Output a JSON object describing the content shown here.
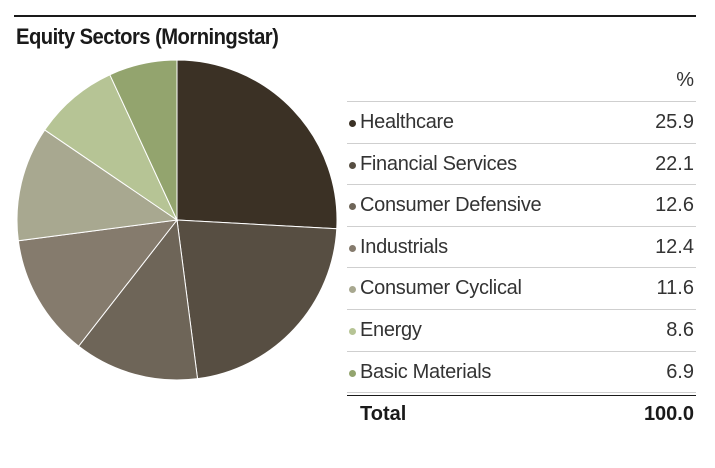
{
  "title": "Equity Sectors (Morningstar)",
  "unit_header": "%",
  "total": {
    "label": "Total",
    "value": "100.0"
  },
  "chart_data": {
    "type": "pie",
    "title": "Equity Sectors (Morningstar)",
    "unit": "%",
    "categories": [
      "Healthcare",
      "Financial Services",
      "Consumer Defensive",
      "Industrials",
      "Consumer Cyclical",
      "Energy",
      "Basic Materials"
    ],
    "values": [
      25.9,
      22.1,
      12.6,
      12.4,
      11.6,
      8.6,
      6.9
    ],
    "value_labels": [
      "25.9",
      "22.1",
      "12.6",
      "12.4",
      "11.6",
      "8.6",
      "6.9"
    ],
    "colors": [
      "#3b3125",
      "#574e42",
      "#6e6558",
      "#857b6d",
      "#a8a890",
      "#b6c495",
      "#93a46e"
    ],
    "total": 100.0,
    "legend": "right"
  }
}
